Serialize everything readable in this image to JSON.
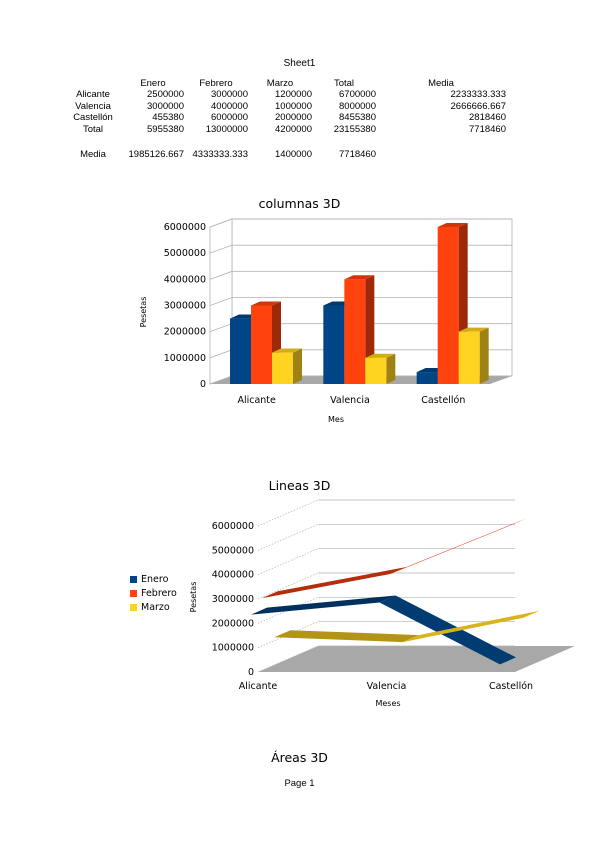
{
  "sheet": {
    "title": "Sheet1",
    "headers": [
      "",
      "Enero",
      "Febrero",
      "Marzo",
      "Total",
      "Media"
    ],
    "rows": [
      [
        "Alicante",
        "2500000",
        "3000000",
        "1200000",
        "6700000",
        "2233333.333"
      ],
      [
        "Valencia",
        "3000000",
        "4000000",
        "1000000",
        "8000000",
        "2666666.667"
      ],
      [
        "Castellón",
        "455380",
        "6000000",
        "2000000",
        "8455380",
        "2818460"
      ],
      [
        "Total",
        "5955380",
        "13000000",
        "4200000",
        "23155380",
        "7718460"
      ]
    ],
    "media_row": [
      "Media",
      "1985126.667",
      "4333333.333",
      "1400000",
      "7718460",
      ""
    ]
  },
  "colors": {
    "enero": "#004586",
    "febrero": "#ff420e",
    "marzo": "#ffd320"
  },
  "chart_data": [
    {
      "type": "bar",
      "title": "columnas 3D",
      "xlabel": "Mes",
      "ylabel": "Pesetas",
      "categories": [
        "Alicante",
        "Valencia",
        "Castellón"
      ],
      "series": [
        {
          "values": [
            2500000,
            3000000,
            455380
          ]
        },
        {
          "values": [
            3000000,
            4000000,
            6000000
          ]
        },
        {
          "values": [
            1200000,
            1000000,
            2000000
          ]
        }
      ],
      "ylim": [
        0,
        6000000
      ],
      "yticks": [
        "0",
        "1000000",
        "2000000",
        "3000000",
        "4000000",
        "5000000",
        "6000000"
      ]
    },
    {
      "type": "line",
      "title": "Lineas 3D",
      "xlabel": "Meses",
      "ylabel": "Pesetas",
      "categories": [
        "Alicante",
        "Valencia",
        "Castellón"
      ],
      "series": [
        {
          "name": "Enero",
          "values": [
            2500000,
            3000000,
            455380
          ]
        },
        {
          "name": "Febrero",
          "values": [
            3000000,
            4000000,
            6000000
          ]
        },
        {
          "name": "Marzo",
          "values": [
            1200000,
            1000000,
            2000000
          ]
        }
      ],
      "ylim": [
        0,
        6000000
      ],
      "yticks": [
        "0",
        "1000000",
        "2000000",
        "3000000",
        "4000000",
        "5000000",
        "6000000"
      ],
      "legend": "left"
    },
    {
      "type": "area",
      "title": "Áreas 3D"
    }
  ],
  "footer": {
    "page": "Page 1"
  }
}
